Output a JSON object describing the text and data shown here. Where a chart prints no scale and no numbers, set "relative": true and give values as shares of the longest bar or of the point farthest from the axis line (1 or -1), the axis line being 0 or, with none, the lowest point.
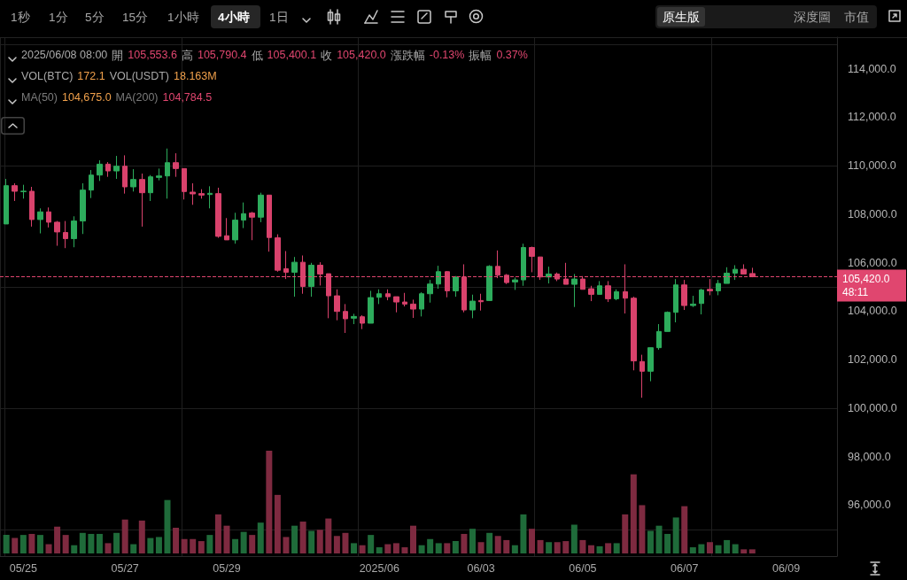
{
  "chart_data": [
    {
      "type": "candlestick",
      "x": [
        "2025-05-24T16:00",
        "2025-05-24T20:00",
        "2025-05-25T00:00",
        "2025-05-25T04:00",
        "2025-05-25T08:00",
        "2025-05-25T12:00",
        "2025-05-25T16:00",
        "2025-05-25T20:00",
        "2025-05-26T00:00",
        "2025-05-26T04:00",
        "2025-05-26T08:00",
        "2025-05-26T12:00",
        "2025-05-26T16:00",
        "2025-05-26T20:00",
        "2025-05-27T00:00",
        "2025-05-27T04:00",
        "2025-05-27T08:00",
        "2025-05-27T12:00",
        "2025-05-27T16:00",
        "2025-05-27T20:00",
        "2025-05-28T00:00",
        "2025-05-28T04:00",
        "2025-05-28T08:00",
        "2025-05-28T12:00",
        "2025-05-28T16:00",
        "2025-05-28T20:00",
        "2025-05-29T00:00",
        "2025-05-29T04:00",
        "2025-05-29T08:00",
        "2025-05-29T12:00",
        "2025-05-29T16:00",
        "2025-05-29T20:00",
        "2025-05-30T00:00",
        "2025-05-30T04:00",
        "2025-05-30T08:00",
        "2025-05-30T12:00",
        "2025-05-30T16:00",
        "2025-05-30T20:00",
        "2025-05-31T00:00",
        "2025-05-31T04:00",
        "2025-05-31T08:00",
        "2025-05-31T12:00",
        "2025-05-31T16:00",
        "2025-05-31T20:00",
        "2025-06-01T00:00",
        "2025-06-01T04:00",
        "2025-06-01T08:00",
        "2025-06-01T12:00",
        "2025-06-01T16:00",
        "2025-06-01T20:00",
        "2025-06-02T00:00",
        "2025-06-02T04:00",
        "2025-06-02T08:00",
        "2025-06-02T12:00",
        "2025-06-02T16:00",
        "2025-06-02T20:00",
        "2025-06-03T00:00",
        "2025-06-03T04:00",
        "2025-06-03T08:00",
        "2025-06-03T12:00",
        "2025-06-03T16:00",
        "2025-06-03T20:00",
        "2025-06-04T00:00",
        "2025-06-04T04:00",
        "2025-06-04T08:00",
        "2025-06-04T12:00",
        "2025-06-04T16:00",
        "2025-06-04T20:00",
        "2025-06-05T00:00",
        "2025-06-05T04:00",
        "2025-06-05T08:00",
        "2025-06-05T12:00",
        "2025-06-05T16:00",
        "2025-06-05T20:00",
        "2025-06-06T00:00",
        "2025-06-06T04:00",
        "2025-06-06T08:00",
        "2025-06-06T12:00",
        "2025-06-06T16:00",
        "2025-06-06T20:00",
        "2025-06-07T00:00",
        "2025-06-07T04:00",
        "2025-06-07T08:00",
        "2025-06-07T12:00",
        "2025-06-07T16:00",
        "2025-06-07T20:00",
        "2025-06-08T00:00",
        "2025-06-08T04:00",
        "2025-06-08T08:00"
      ],
      "ohlc": [
        [
          107597,
          109456,
          107597,
          109177
        ],
        [
          109177,
          109274,
          108545,
          108946
        ],
        [
          108930,
          109213,
          108642,
          108950
        ],
        [
          108946,
          109128,
          107488,
          107780
        ],
        [
          107780,
          108241,
          107209,
          108096
        ],
        [
          108096,
          108278,
          107452,
          107670
        ],
        [
          107670,
          107719,
          106698,
          107269
        ],
        [
          107245,
          107719,
          106601,
          106990
        ],
        [
          106990,
          107913,
          106637,
          107719
        ],
        [
          107719,
          109274,
          107184,
          108995
        ],
        [
          108995,
          109821,
          108666,
          109614
        ],
        [
          109614,
          110222,
          109371,
          110064
        ],
        [
          110064,
          110149,
          109541,
          109784
        ],
        [
          109784,
          110404,
          109456,
          109979
        ],
        [
          109979,
          110428,
          108849,
          109128
        ],
        [
          109128,
          109857,
          108934,
          109432
        ],
        [
          109432,
          109675,
          107488,
          108885
        ],
        [
          108885,
          109614,
          108545,
          109541
        ],
        [
          109517,
          109881,
          109396,
          109578
        ],
        [
          109578,
          110708,
          108642,
          110125
        ],
        [
          110125,
          110513,
          109541,
          109882
        ],
        [
          109882,
          109882,
          108606,
          108934
        ],
        [
          108910,
          109274,
          108387,
          108837
        ],
        [
          108849,
          109031,
          108642,
          108788
        ],
        [
          108812,
          109152,
          108241,
          108861
        ],
        [
          108849,
          109092,
          107026,
          107087
        ],
        [
          107111,
          107840,
          106941,
          106941
        ],
        [
          106941,
          108059,
          106783,
          107755
        ],
        [
          107755,
          108484,
          107427,
          108022
        ],
        [
          108047,
          108096,
          106929,
          107877
        ],
        [
          107877,
          108885,
          107670,
          108788
        ],
        [
          108788,
          108788,
          106455,
          107038
        ],
        [
          107026,
          107172,
          105629,
          105690
        ],
        [
          105752,
          106480,
          105326,
          105606
        ],
        [
          105606,
          106237,
          104597,
          106019
        ],
        [
          106019,
          106298,
          104719,
          105022
        ],
        [
          105022,
          105995,
          104597,
          105897
        ],
        [
          105897,
          106019,
          105059,
          105533
        ],
        [
          105545,
          105545,
          103710,
          104634
        ],
        [
          104634,
          104901,
          103625,
          103990
        ],
        [
          103990,
          104294,
          103103,
          103686
        ],
        [
          103710,
          103892,
          103467,
          103783
        ],
        [
          103771,
          103832,
          103261,
          103504
        ],
        [
          103504,
          104840,
          103504,
          104561
        ],
        [
          104573,
          104901,
          104294,
          104719
        ],
        [
          104719,
          104901,
          104451,
          104597
        ],
        [
          104597,
          104597,
          103953,
          104379
        ],
        [
          104379,
          104755,
          104196,
          104294
        ],
        [
          104294,
          104476,
          103722,
          104087
        ],
        [
          104087,
          104780,
          103783,
          104719
        ],
        [
          104719,
          105290,
          104354,
          105120
        ],
        [
          105120,
          105873,
          104925,
          105630
        ],
        [
          105630,
          105654,
          104573,
          104840
        ],
        [
          104840,
          105448,
          104597,
          105411
        ],
        [
          105411,
          105934,
          103953,
          104051
        ],
        [
          104051,
          104682,
          103710,
          104415
        ],
        [
          104440,
          104719,
          104026,
          104391
        ],
        [
          104440,
          105897,
          104440,
          105849
        ],
        [
          105849,
          106505,
          105363,
          105484
        ],
        [
          105484,
          105533,
          105120,
          105180
        ],
        [
          105205,
          105387,
          104877,
          105290
        ],
        [
          105290,
          106784,
          105047,
          106626
        ],
        [
          106626,
          106663,
          105606,
          106262
        ],
        [
          106237,
          106237,
          105290,
          105411
        ],
        [
          105411,
          105837,
          105144,
          105533
        ],
        [
          105533,
          105594,
          105241,
          105326
        ],
        [
          105326,
          105995,
          105108,
          105108
        ],
        [
          105108,
          105533,
          104172,
          105326
        ],
        [
          105326,
          105448,
          104901,
          104901
        ],
        [
          104925,
          105047,
          104415,
          104695
        ],
        [
          104695,
          105241,
          104695,
          105047
        ],
        [
          105047,
          105241,
          104379,
          104512
        ],
        [
          104512,
          104901,
          104452,
          104804
        ],
        [
          104804,
          105934,
          103905,
          104537
        ],
        [
          104537,
          104597,
          101560,
          101949
        ],
        [
          101924,
          102204,
          100430,
          101523
        ],
        [
          101523,
          102495,
          101110,
          102495
        ],
        [
          102495,
          103467,
          102410,
          103163
        ],
        [
          103163,
          103990,
          103163,
          103953
        ],
        [
          103953,
          105326,
          103540,
          105083
        ],
        [
          105083,
          105290,
          104051,
          104233
        ],
        [
          104233,
          104634,
          104172,
          104294
        ],
        [
          104318,
          104925,
          103868,
          104877
        ],
        [
          104901,
          105326,
          104658,
          104840
        ],
        [
          104840,
          105290,
          104658,
          105144
        ],
        [
          105144,
          105812,
          105144,
          105569
        ],
        [
          105569,
          105897,
          105290,
          105727
        ],
        [
          105727,
          105934,
          105533,
          105533
        ],
        [
          105553.6,
          105790.4,
          105400.1,
          105420.0
        ]
      ],
      "colors": [
        "#2dac5c",
        "#d9426c",
        "#2dac5c",
        "#d9426c",
        "#2dac5c",
        "#d9426c",
        "#d9426c",
        "#d9426c",
        "#2dac5c",
        "#2dac5c",
        "#2dac5c",
        "#2dac5c",
        "#d9426c",
        "#2dac5c",
        "#d9426c",
        "#2dac5c",
        "#d9426c",
        "#2dac5c",
        "#2dac5c",
        "#2dac5c",
        "#d9426c",
        "#d9426c",
        "#d9426c",
        "#d9426c",
        "#2dac5c",
        "#d9426c",
        "#d9426c",
        "#2dac5c",
        "#2dac5c",
        "#d9426c",
        "#2dac5c",
        "#d9426c",
        "#d9426c",
        "#d9426c",
        "#2dac5c",
        "#d9426c",
        "#2dac5c",
        "#d9426c",
        "#d9426c",
        "#d9426c",
        "#d9426c",
        "#2dac5c",
        "#d9426c",
        "#2dac5c",
        "#2dac5c",
        "#d9426c",
        "#d9426c",
        "#d9426c",
        "#d9426c",
        "#2dac5c",
        "#2dac5c",
        "#2dac5c",
        "#d9426c",
        "#2dac5c",
        "#d9426c",
        "#2dac5c",
        "#d9426c",
        "#2dac5c",
        "#d9426c",
        "#d9426c",
        "#2dac5c",
        "#2dac5c",
        "#d9426c",
        "#d9426c",
        "#2dac5c",
        "#d9426c",
        "#d9426c",
        "#2dac5c",
        "#d9426c",
        "#d9426c",
        "#2dac5c",
        "#d9426c",
        "#2dac5c",
        "#d9426c",
        "#d9426c",
        "#d9426c",
        "#2dac5c",
        "#2dac5c",
        "#2dac5c",
        "#2dac5c",
        "#d9426c",
        "#2dac5c",
        "#2dac5c",
        "#d9426c",
        "#2dac5c",
        "#2dac5c",
        "#2dac5c",
        "#d9426c",
        "#d9426c"
      ],
      "xticks": [
        {
          "value": "2025-05-25T00:00",
          "label": null
        },
        {
          "value": "2025-05-27T00:00",
          "label": null
        },
        {
          "value": "2025-05-29T00:00",
          "label": null
        },
        {
          "value": "2025-06-01T00:00",
          "label": null
        },
        {
          "value": "2025-06-03T00:00",
          "label": null
        },
        {
          "value": "2025-06-05T00:00",
          "label": null
        },
        {
          "value": "2025-06-07T00:00",
          "label": null
        },
        {
          "value": "2025-06-09T00:00",
          "label": null
        }
      ],
      "xlim": [
        "2025-05-24T13:00",
        "2025-06-10T00:00"
      ],
      "ylim": [
        93900,
        115300
      ],
      "yticks": [
        {
          "value": 96000,
          "label": "96,000.0"
        },
        {
          "value": 98000,
          "label": "98,000.0"
        },
        {
          "value": 100000,
          "label": "100,000.0"
        },
        {
          "value": 102000,
          "label": "102,000.0"
        },
        {
          "value": 104000,
          "label": "104,000.0"
        },
        {
          "value": 106000,
          "label": "106,000.0"
        },
        {
          "value": 108000,
          "label": "108,000.0"
        },
        {
          "value": 110000,
          "label": "110,000.0"
        },
        {
          "value": 112000,
          "label": "112,000.0"
        },
        {
          "value": 114000,
          "label": "114,000.0"
        }
      ],
      "tick_labels": "y",
      "grid": true,
      "ref_lines": [
        {
          "axis": "y",
          "value": 105420,
          "label": "105,420.0",
          "color": "#e0466f",
          "line_style": "dashed"
        }
      ],
      "annotations": [
        "1秒",
        "1分",
        "5分",
        "15分",
        "1小時",
        "4小時",
        "1日",
        "原生版",
        "深度圖",
        "市值",
        "2025/06/08 08:00",
        "開",
        "105,553.6",
        "高",
        "105,790.4",
        "低",
        "105,400.1",
        "收",
        "105,420.0",
        "漲跌幅",
        "-0.13%",
        "振幅",
        "0.37%",
        "MA(50)",
        "104,675.0",
        "MA(200)",
        "104,784.5",
        "48:11"
      ]
    },
    {
      "type": "bar",
      "relative": true,
      "x": [
        "2025-05-24T16:00",
        "2025-05-24T20:00",
        "2025-05-25T00:00",
        "2025-05-25T04:00",
        "2025-05-25T08:00",
        "2025-05-25T12:00",
        "2025-05-25T16:00",
        "2025-05-25T20:00",
        "2025-05-26T00:00",
        "2025-05-26T04:00",
        "2025-05-26T08:00",
        "2025-05-26T12:00",
        "2025-05-26T16:00",
        "2025-05-26T20:00",
        "2025-05-27T00:00",
        "2025-05-27T04:00",
        "2025-05-27T08:00",
        "2025-05-27T12:00",
        "2025-05-27T16:00",
        "2025-05-27T20:00",
        "2025-05-28T00:00",
        "2025-05-28T04:00",
        "2025-05-28T08:00",
        "2025-05-28T12:00",
        "2025-05-28T16:00",
        "2025-05-28T20:00",
        "2025-05-29T00:00",
        "2025-05-29T04:00",
        "2025-05-29T08:00",
        "2025-05-29T12:00",
        "2025-05-29T16:00",
        "2025-05-29T20:00",
        "2025-05-30T00:00",
        "2025-05-30T04:00",
        "2025-05-30T08:00",
        "2025-05-30T12:00",
        "2025-05-30T16:00",
        "2025-05-30T20:00",
        "2025-05-31T00:00",
        "2025-05-31T04:00",
        "2025-05-31T08:00",
        "2025-05-31T12:00",
        "2025-05-31T16:00",
        "2025-05-31T20:00",
        "2025-06-01T00:00",
        "2025-06-01T04:00",
        "2025-06-01T08:00",
        "2025-06-01T12:00",
        "2025-06-01T16:00",
        "2025-06-01T20:00",
        "2025-06-02T00:00",
        "2025-06-02T04:00",
        "2025-06-02T08:00",
        "2025-06-02T12:00",
        "2025-06-02T16:00",
        "2025-06-02T20:00",
        "2025-06-03T00:00",
        "2025-06-03T04:00",
        "2025-06-03T08:00",
        "2025-06-03T12:00",
        "2025-06-03T16:00",
        "2025-06-03T20:00",
        "2025-06-04T00:00",
        "2025-06-04T04:00",
        "2025-06-04T08:00",
        "2025-06-04T12:00",
        "2025-06-04T16:00",
        "2025-06-04T20:00",
        "2025-06-05T00:00",
        "2025-06-05T04:00",
        "2025-06-05T08:00",
        "2025-06-05T12:00",
        "2025-06-05T16:00",
        "2025-06-05T20:00",
        "2025-06-06T00:00",
        "2025-06-06T04:00",
        "2025-06-06T08:00",
        "2025-06-06T12:00",
        "2025-06-06T16:00",
        "2025-06-06T20:00",
        "2025-06-07T00:00",
        "2025-06-07T04:00",
        "2025-06-07T08:00",
        "2025-06-07T12:00",
        "2025-06-07T16:00",
        "2025-06-07T20:00",
        "2025-06-08T00:00",
        "2025-06-08T04:00",
        "2025-06-08T08:00"
      ],
      "values": [
        0.18,
        0.15,
        0.18,
        0.19,
        0.18,
        0.09,
        0.26,
        0.18,
        0.08,
        0.2,
        0.19,
        0.19,
        0.1,
        0.2,
        0.33,
        0.09,
        0.32,
        0.15,
        0.16,
        0.52,
        0.25,
        0.14,
        0.14,
        0.12,
        0.18,
        0.38,
        0.27,
        0.14,
        0.21,
        0.18,
        0.3,
        1,
        0.57,
        0.16,
        0.27,
        0.31,
        0.22,
        0.23,
        0.34,
        0.17,
        0.2,
        0.1,
        0.08,
        0.18,
        0.06,
        0.09,
        0.1,
        0.06,
        0.27,
        0.08,
        0.14,
        0.1,
        0.1,
        0.12,
        0.19,
        0.24,
        0.11,
        0.2,
        0.17,
        0.13,
        0.08,
        0.38,
        0.24,
        0.13,
        0.11,
        0.11,
        0.12,
        0.28,
        0.13,
        0.08,
        0.07,
        0.1,
        0.1,
        0.38,
        0.77,
        0.47,
        0.22,
        0.27,
        0.19,
        0.35,
        0.46,
        0.06,
        0.09,
        0.11,
        0.08,
        0.13,
        0.09,
        0.04,
        0.04
      ],
      "colors": [
        "#1f6b3a",
        "#7e2a40",
        "#1f6b3a",
        "#7e2a40",
        "#1f6b3a",
        "#7e2a40",
        "#7e2a40",
        "#7e2a40",
        "#1f6b3a",
        "#1f6b3a",
        "#1f6b3a",
        "#1f6b3a",
        "#7e2a40",
        "#1f6b3a",
        "#7e2a40",
        "#1f6b3a",
        "#7e2a40",
        "#1f6b3a",
        "#1f6b3a",
        "#1f6b3a",
        "#7e2a40",
        "#7e2a40",
        "#7e2a40",
        "#7e2a40",
        "#1f6b3a",
        "#7e2a40",
        "#7e2a40",
        "#1f6b3a",
        "#1f6b3a",
        "#7e2a40",
        "#1f6b3a",
        "#7e2a40",
        "#7e2a40",
        "#7e2a40",
        "#1f6b3a",
        "#7e2a40",
        "#1f6b3a",
        "#7e2a40",
        "#7e2a40",
        "#7e2a40",
        "#7e2a40",
        "#1f6b3a",
        "#7e2a40",
        "#1f6b3a",
        "#1f6b3a",
        "#7e2a40",
        "#7e2a40",
        "#7e2a40",
        "#7e2a40",
        "#1f6b3a",
        "#1f6b3a",
        "#1f6b3a",
        "#7e2a40",
        "#1f6b3a",
        "#7e2a40",
        "#1f6b3a",
        "#7e2a40",
        "#1f6b3a",
        "#7e2a40",
        "#7e2a40",
        "#1f6b3a",
        "#1f6b3a",
        "#7e2a40",
        "#7e2a40",
        "#1f6b3a",
        "#7e2a40",
        "#7e2a40",
        "#1f6b3a",
        "#7e2a40",
        "#7e2a40",
        "#1f6b3a",
        "#7e2a40",
        "#1f6b3a",
        "#7e2a40",
        "#7e2a40",
        "#7e2a40",
        "#1f6b3a",
        "#1f6b3a",
        "#1f6b3a",
        "#1f6b3a",
        "#7e2a40",
        "#1f6b3a",
        "#1f6b3a",
        "#7e2a40",
        "#1f6b3a",
        "#1f6b3a",
        "#1f6b3a",
        "#7e2a40",
        "#7e2a40"
      ],
      "xlim": [
        "2025-05-24T13:00",
        "2025-06-10T00:00"
      ],
      "xticks": [
        {
          "value": "2025-05-25T00:00",
          "label": "05/25"
        },
        {
          "value": "2025-05-27T00:00",
          "label": "05/27"
        },
        {
          "value": "2025-05-29T00:00",
          "label": "05/29"
        },
        {
          "value": "2025-06-01T00:00",
          "label": "2025/06"
        },
        {
          "value": "2025-06-03T00:00",
          "label": "06/03"
        },
        {
          "value": "2025-06-05T00:00",
          "label": "06/05"
        },
        {
          "value": "2025-06-07T00:00",
          "label": "06/07"
        },
        {
          "value": "2025-06-09T00:00",
          "label": "06/09"
        }
      ],
      "tick_labels": "x",
      "annotations": [
        "VOL(BTC)",
        "172.1",
        "VOL(USDT)",
        "18.163M"
      ]
    }
  ]
}
